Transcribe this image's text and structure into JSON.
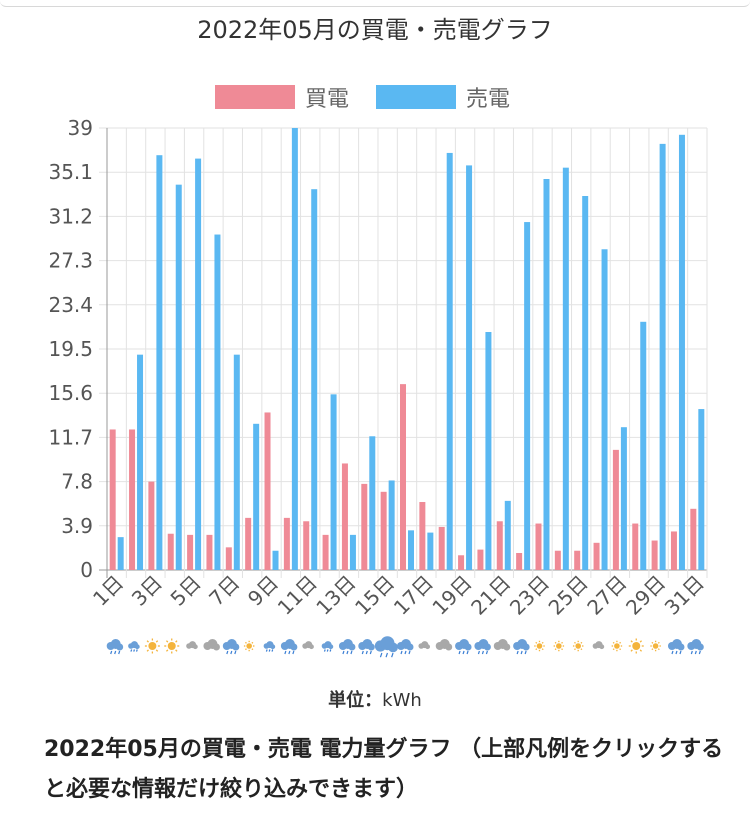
{
  "title": "2022年05月の買電・売電グラフ",
  "unit": {
    "prefix": "単位：",
    "value": "kWh"
  },
  "caption": "2022年05月の買電・売電 電力量グラフ （上部凡例をクリックすると必要な情報だけ絞り込みできます）",
  "colors": {
    "buy": "#ef8a96",
    "sell": "#5ab8f2",
    "grid": "#e2e2e2"
  },
  "chart_data": {
    "type": "bar",
    "title": "2022年05月の買電・売電グラフ",
    "xlabel": "",
    "ylabel": "",
    "ylim": [
      0,
      39
    ],
    "y_ticks": [
      "0",
      "3.9",
      "7.8",
      "11.7",
      "15.6",
      "19.5",
      "23.4",
      "27.3",
      "31.2",
      "35.1",
      "39"
    ],
    "legend_position": "top-center",
    "grid": true,
    "categories": [
      "1日",
      "2日",
      "3日",
      "4日",
      "5日",
      "6日",
      "7日",
      "8日",
      "9日",
      "10日",
      "11日",
      "12日",
      "13日",
      "14日",
      "15日",
      "16日",
      "17日",
      "18日",
      "19日",
      "20日",
      "21日",
      "22日",
      "23日",
      "24日",
      "25日",
      "26日",
      "27日",
      "28日",
      "29日",
      "30日",
      "31日"
    ],
    "x_tick_labels": [
      "1日",
      "3日",
      "5日",
      "7日",
      "9日",
      "11日",
      "13日",
      "15日",
      "17日",
      "19日",
      "21日",
      "23日",
      "25日",
      "27日",
      "29日",
      "31日"
    ],
    "series": [
      {
        "name": "買電",
        "values": [
          12.4,
          12.4,
          7.8,
          3.2,
          3.1,
          3.1,
          2.0,
          4.6,
          13.9,
          4.6,
          4.3,
          3.1,
          9.4,
          7.6,
          6.9,
          16.4,
          6.0,
          3.8,
          1.3,
          1.8,
          4.3,
          1.5,
          4.1,
          1.7,
          1.7,
          2.4,
          10.6,
          4.1,
          2.6,
          3.4,
          5.4
        ]
      },
      {
        "name": "売電",
        "values": [
          2.9,
          19.0,
          36.6,
          34.0,
          36.3,
          29.6,
          19.0,
          12.9,
          1.7,
          39.0,
          33.6,
          15.5,
          3.1,
          11.8,
          7.9,
          3.5,
          3.3,
          36.8,
          35.7,
          21.0,
          6.1,
          30.7,
          34.5,
          35.5,
          33.0,
          28.3,
          12.6,
          21.9,
          37.6,
          38.4,
          14.2
        ]
      }
    ],
    "weather_icons": [
      "rain",
      "rain-small",
      "sun",
      "sun",
      "cloud-small",
      "cloud",
      "rain",
      "sun-small",
      "rain-small",
      "rain",
      "cloud-small",
      "rain-small",
      "rain",
      "rain",
      "heavy-rain",
      "rain",
      "cloud-small",
      "cloud",
      "rain",
      "rain",
      "cloud",
      "rain",
      "sun-small",
      "sun-small",
      "sun-small",
      "cloud-small",
      "sun-small",
      "sun",
      "sun-small",
      "rain",
      "rain"
    ]
  }
}
